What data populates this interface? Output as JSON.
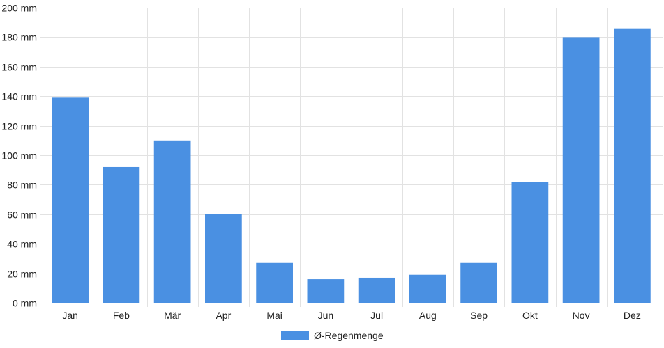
{
  "chart_data": {
    "type": "bar",
    "categories": [
      "Jan",
      "Feb",
      "Mär",
      "Apr",
      "Mai",
      "Jun",
      "Jul",
      "Aug",
      "Sep",
      "Okt",
      "Nov",
      "Dez"
    ],
    "series": [
      {
        "name": "Ø-Regenmenge",
        "color": "#4a90e2",
        "values": [
          139,
          92,
          110,
          60,
          27,
          16,
          17,
          19,
          27,
          82,
          180,
          186
        ]
      }
    ],
    "title": "",
    "xlabel": "",
    "ylabel": "",
    "y_unit": "mm",
    "ylim": [
      0,
      200
    ],
    "yticks": [
      0,
      20,
      40,
      60,
      80,
      100,
      120,
      140,
      160,
      180,
      200
    ],
    "grid": true,
    "legend_position": "bottom-center"
  }
}
